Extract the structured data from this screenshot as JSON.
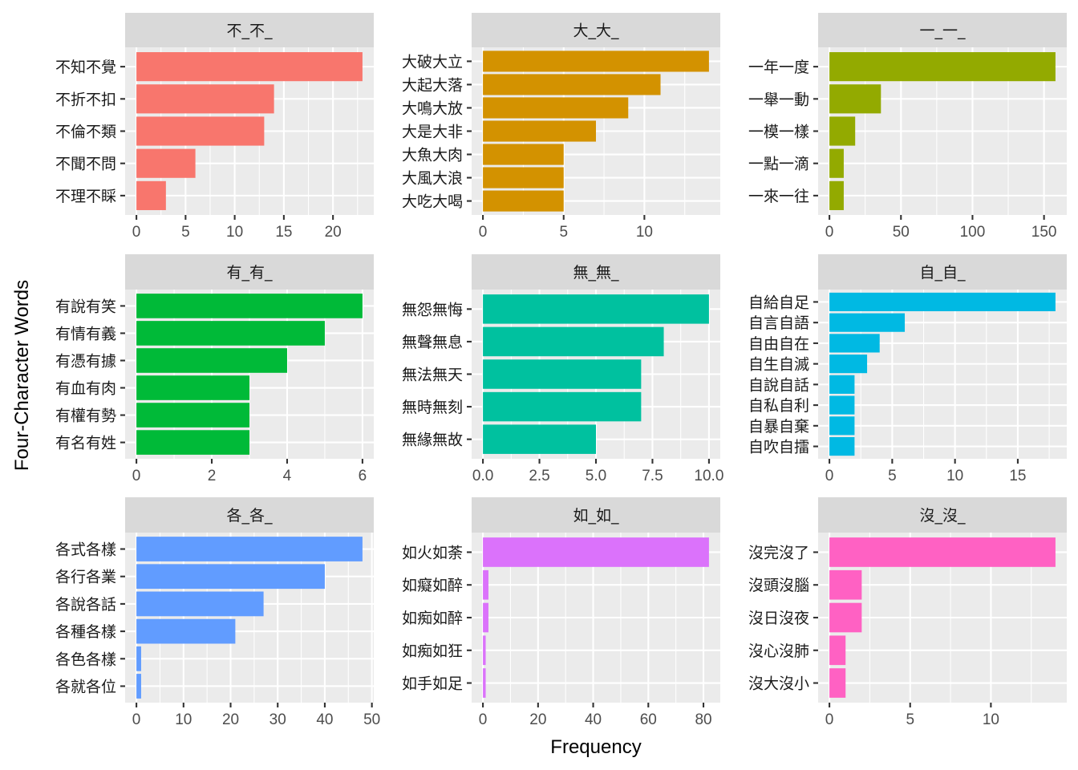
{
  "chart_data": {
    "type": "bar",
    "orientation": "horizontal",
    "facet_layout": "3x3",
    "scales": "free",
    "xlabel": "Frequency",
    "ylabel": "Four-Character Words",
    "grid": true,
    "legend": "none",
    "panels": [
      {
        "title": "不_不_",
        "color": "#F8766D",
        "xlim": [
          -1.15,
          24.15
        ],
        "xticks": [
          0,
          5,
          10,
          15,
          20
        ],
        "xtick_labels": [
          "0",
          "5",
          "10",
          "15",
          "20"
        ],
        "categories": [
          "不知不覺",
          "不折不扣",
          "不倫不類",
          "不聞不問",
          "不理不睬"
        ],
        "values": [
          23,
          14,
          13,
          6,
          3
        ]
      },
      {
        "title": "大_大_",
        "color": "#D39200",
        "xlim": [
          -0.7,
          14.7
        ],
        "xticks": [
          0,
          5,
          10
        ],
        "xtick_labels": [
          "0",
          "5",
          "10"
        ],
        "categories": [
          "大破大立",
          "大起大落",
          "大鳴大放",
          "大是大非",
          "大魚大肉",
          "大風大浪",
          "大吃大喝"
        ],
        "values": [
          14,
          11,
          9,
          7,
          5,
          5,
          5
        ]
      },
      {
        "title": "一_一_",
        "color": "#93AA00",
        "xlim": [
          -7.9,
          165.9
        ],
        "xticks": [
          0,
          50,
          100,
          150
        ],
        "xtick_labels": [
          "0",
          "50",
          "100",
          "150"
        ],
        "categories": [
          "一年一度",
          "一舉一動",
          "一模一樣",
          "一點一滴",
          "一來一往"
        ],
        "values": [
          158,
          36,
          18,
          10,
          10
        ]
      },
      {
        "title": "有_有_",
        "color": "#00BA38",
        "xlim": [
          -0.3,
          6.3
        ],
        "xticks": [
          0,
          2,
          4,
          6
        ],
        "xtick_labels": [
          "0",
          "2",
          "4",
          "6"
        ],
        "categories": [
          "有說有笑",
          "有情有義",
          "有憑有據",
          "有血有肉",
          "有權有勢",
          "有名有姓"
        ],
        "values": [
          6,
          5,
          4,
          3,
          3,
          3
        ]
      },
      {
        "title": "無_無_",
        "color": "#00C19F",
        "xlim": [
          -0.5,
          10.5
        ],
        "xticks": [
          0,
          2.5,
          5,
          7.5,
          10
        ],
        "xtick_labels": [
          "0.0",
          "2.5",
          "5.0",
          "7.5",
          "10.0"
        ],
        "categories": [
          "無怨無悔",
          "無聲無息",
          "無法無天",
          "無時無刻",
          "無緣無故"
        ],
        "values": [
          10,
          8,
          7,
          7,
          5
        ]
      },
      {
        "title": "自_自_",
        "color": "#00B9E3",
        "xlim": [
          -0.9,
          18.9
        ],
        "xticks": [
          0,
          5,
          10,
          15
        ],
        "xtick_labels": [
          "0",
          "5",
          "10",
          "15"
        ],
        "categories": [
          "自給自足",
          "自言自語",
          "自由自在",
          "自生自滅",
          "自說自話",
          "自私自利",
          "自暴自棄",
          "自吹自擂"
        ],
        "values": [
          18,
          6,
          4,
          3,
          2,
          2,
          2,
          2
        ]
      },
      {
        "title": "各_各_",
        "color": "#619CFF",
        "xlim": [
          -2.4,
          50.4
        ],
        "xticks": [
          0,
          10,
          20,
          30,
          40,
          50
        ],
        "xtick_labels": [
          "0",
          "10",
          "20",
          "30",
          "40",
          "50"
        ],
        "categories": [
          "各式各樣",
          "各行各業",
          "各說各話",
          "各種各樣",
          "各色各樣",
          "各就各位"
        ],
        "values": [
          48,
          40,
          27,
          21,
          1,
          1
        ]
      },
      {
        "title": "如_如_",
        "color": "#DB72FB",
        "xlim": [
          -4.1,
          86.1
        ],
        "xticks": [
          0,
          20,
          40,
          60,
          80
        ],
        "xtick_labels": [
          "0",
          "20",
          "40",
          "60",
          "80"
        ],
        "categories": [
          "如火如荼",
          "如癡如醉",
          "如痴如醉",
          "如痴如狂",
          "如手如足"
        ],
        "values": [
          82,
          2,
          2,
          1,
          1
        ]
      },
      {
        "title": "沒_沒_",
        "color": "#FF61C3",
        "xlim": [
          -0.7,
          14.7
        ],
        "xticks": [
          0,
          5,
          10
        ],
        "xtick_labels": [
          "0",
          "5",
          "10"
        ],
        "categories": [
          "沒完沒了",
          "沒頭沒腦",
          "沒日沒夜",
          "沒心沒肺",
          "沒大沒小"
        ],
        "values": [
          14,
          2,
          2,
          1,
          1
        ]
      }
    ]
  }
}
